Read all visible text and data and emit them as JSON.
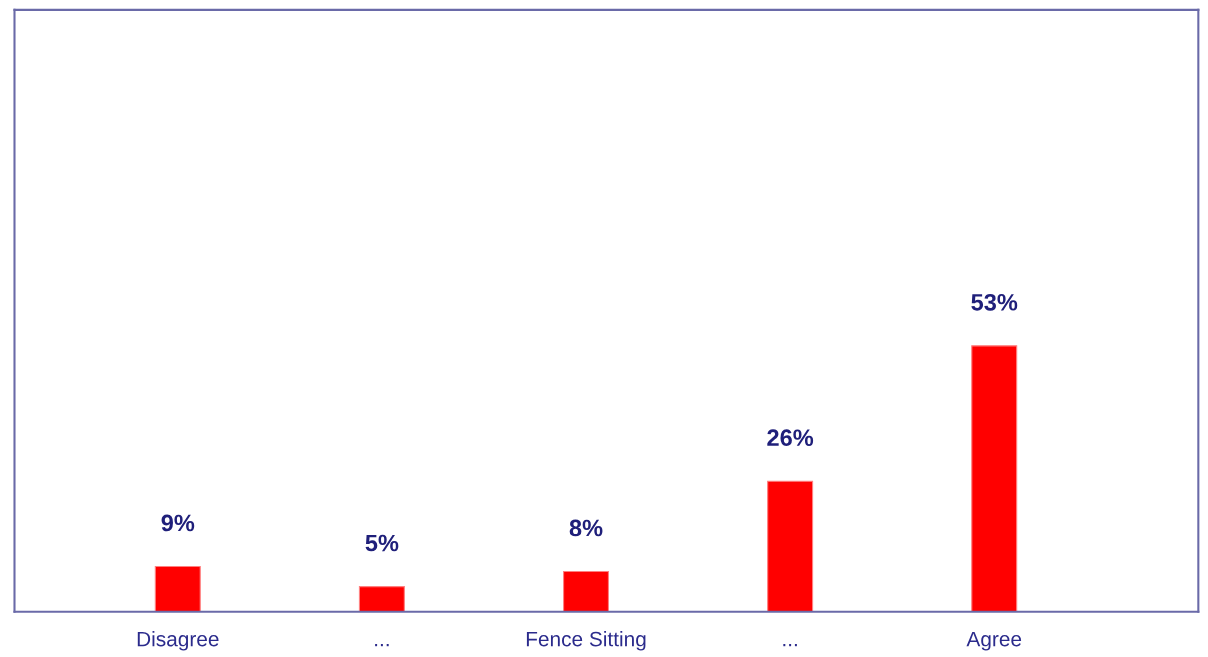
{
  "chart_data": {
    "type": "bar",
    "categories": [
      "Disagree",
      "...",
      "Fence Sitting",
      "...",
      "Agree"
    ],
    "values": [
      9,
      5,
      8,
      26,
      53
    ],
    "value_labels": [
      "9%",
      "5%",
      "8%",
      "26%",
      "53%"
    ],
    "color": "#ff0000",
    "ylim": [
      0,
      120
    ],
    "grid": false,
    "legend": false
  }
}
